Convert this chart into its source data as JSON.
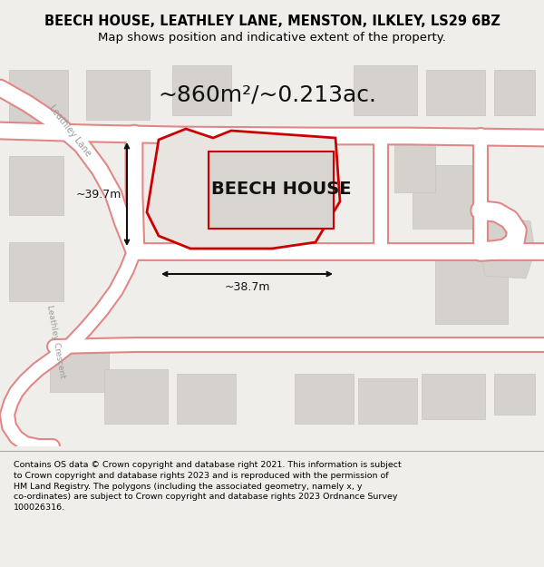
{
  "title": "BEECH HOUSE, LEATHLEY LANE, MENSTON, ILKLEY, LS29 6BZ",
  "subtitle": "Map shows position and indicative extent of the property.",
  "area_text": "~860m²/~0.213ac.",
  "label": "BEECH HOUSE",
  "dim_h": "~39.7m",
  "dim_w": "~38.7m",
  "footer": "Contains OS data © Crown copyright and database right 2021. This information is subject to Crown copyright and database rights 2023 and is reproduced with the permission of HM Land Registry. The polygons (including the associated geometry, namely x, y co-ordinates) are subject to Crown copyright and database rights 2023 Ordnance Survey 100026316.",
  "bg_color": "#f0eeeb",
  "map_bg": "#e8e5e0",
  "road_color": "#ffffff",
  "plot_outline_color": "#cc0000",
  "building_fill": "#d5d1cc",
  "building_edge": "#c8c4bf",
  "road_outline": "#e08888",
  "street_label_color": "#999999",
  "title_color": "#000000",
  "dim_color": "#111111",
  "footer_color": "#000000",
  "figsize": [
    6.0,
    6.25
  ],
  "dpi": 100,
  "title_fontsize": 10.5,
  "subtitle_fontsize": 9.5,
  "area_fontsize": 18,
  "label_fontsize": 14,
  "dim_fontsize": 9,
  "footer_fontsize": 6.8
}
